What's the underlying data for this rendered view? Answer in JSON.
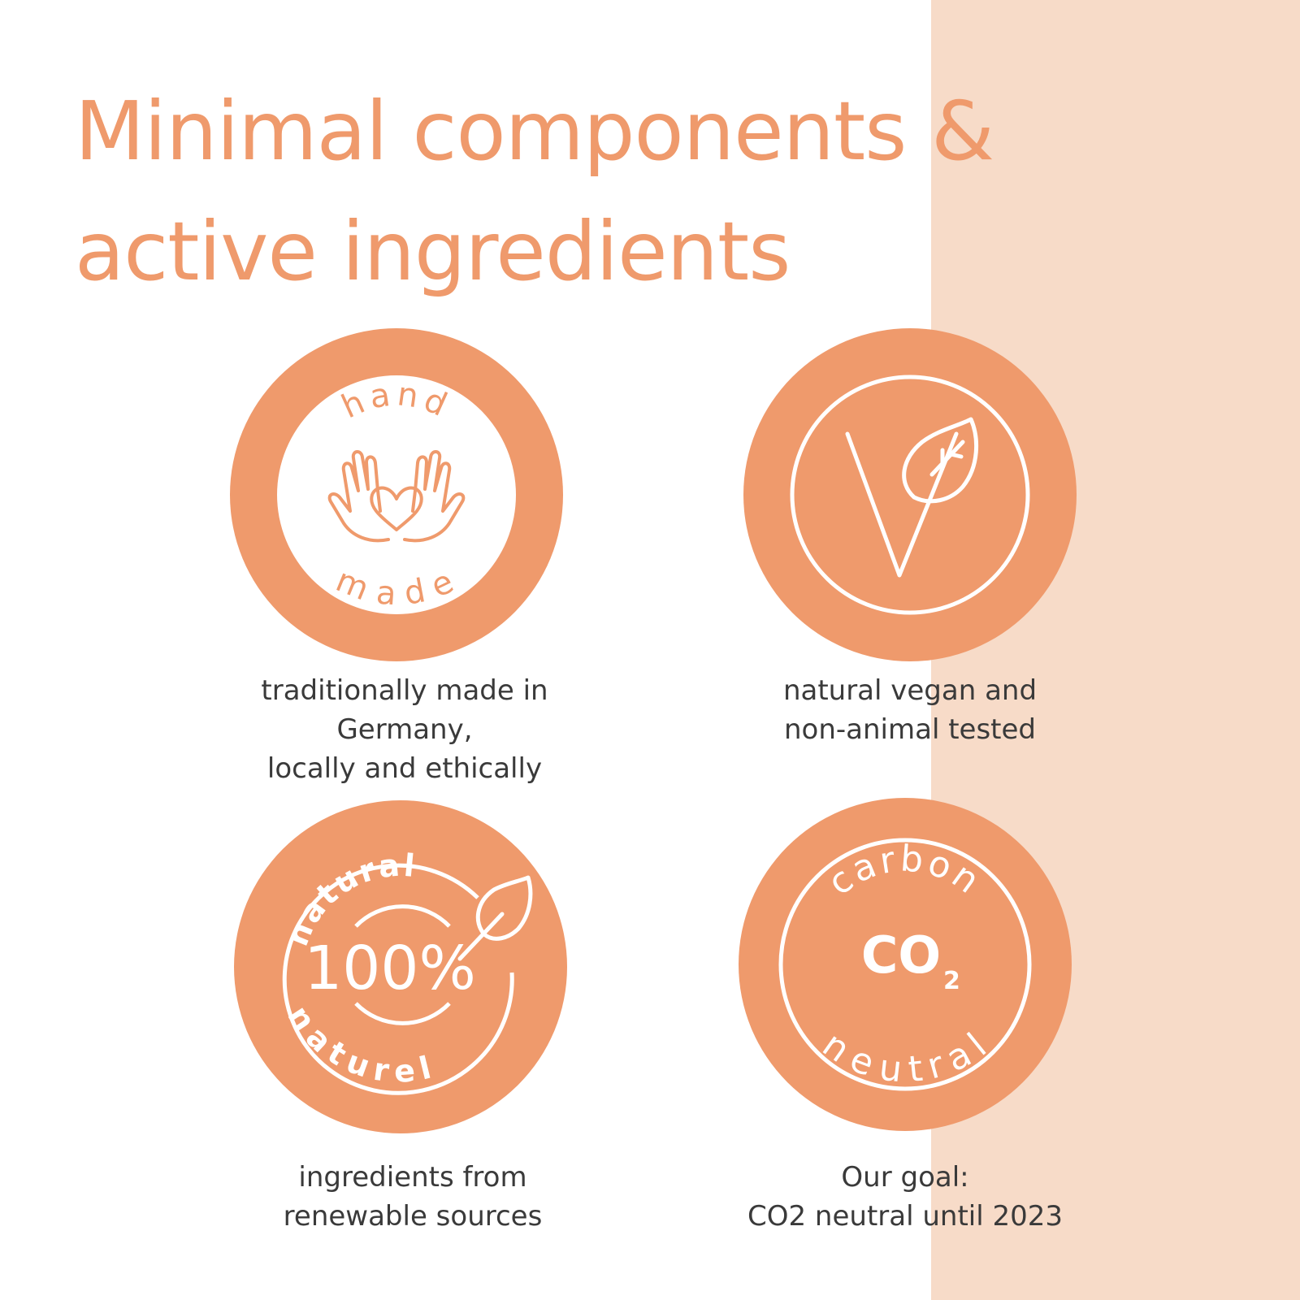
{
  "title": {
    "line1": "Minimal components &",
    "line2": "active ingredients"
  },
  "colors": {
    "accent": "#ef9a6c",
    "panel": "#f7dbc8",
    "text": "#3a3a3a"
  },
  "badges": [
    {
      "icon": "handmade-hands-heart-icon",
      "top_text": "hand",
      "bottom_text": "made",
      "caption": [
        "traditionally made in",
        "Germany,",
        "locally and ethically"
      ]
    },
    {
      "icon": "vegan-v-leaf-icon",
      "caption": [
        "natural vegan and",
        "non-animal tested"
      ]
    },
    {
      "icon": "natural-100-percent-leaf-icon",
      "top_text": "natural",
      "center_text": "100%",
      "bottom_text": "naturel",
      "caption": [
        "ingredients from",
        "renewable sources"
      ]
    },
    {
      "icon": "carbon-neutral-co2-icon",
      "top_text": "carbon",
      "center_text": "CO",
      "subscript": "2",
      "bottom_text": "neutral",
      "caption": [
        "Our goal:",
        "CO2 neutral until 2023"
      ]
    }
  ]
}
